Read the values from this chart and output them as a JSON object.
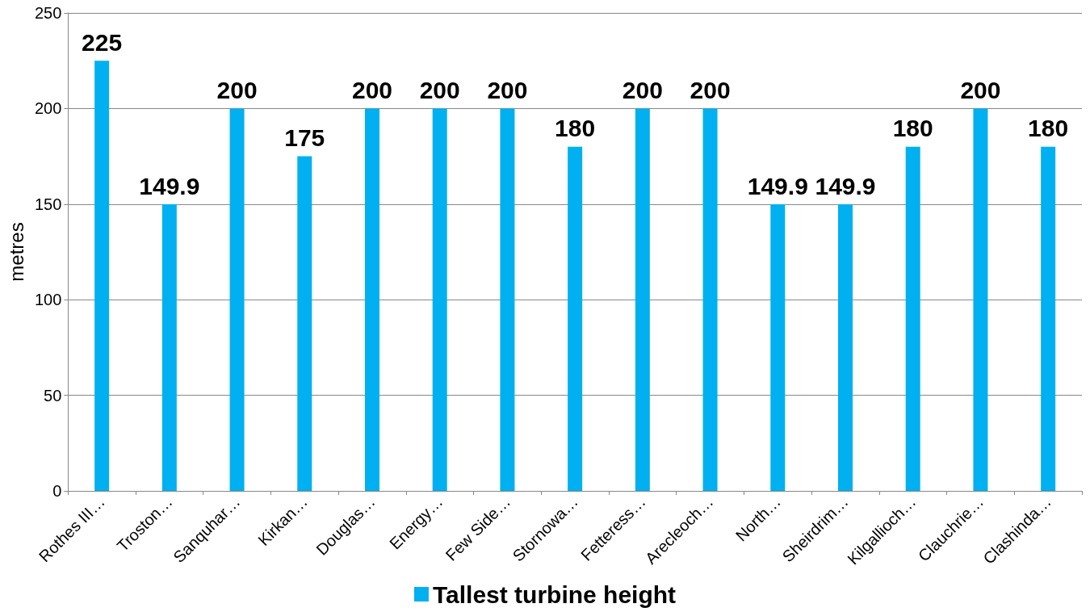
{
  "chart_data": {
    "type": "bar",
    "ylabel": "metres",
    "categories": [
      "Rothes III…",
      "Troston…",
      "Sanquhar…",
      "Kirkan…",
      "Douglas…",
      "Energy…",
      "Few Side…",
      "Stornowa…",
      "Fetteress…",
      "Arecleoch…",
      "North…",
      "Sheirdrim…",
      "Kilgallioch…",
      "Clauchrie…",
      "Clashinda…"
    ],
    "series": [
      {
        "name": "Tallest turbine height",
        "color": "#00b0f0",
        "values": [
          225,
          149.9,
          200,
          175,
          200,
          200,
          200,
          180,
          200,
          200,
          149.9,
          149.9,
          180,
          200,
          180
        ]
      }
    ],
    "ylim": [
      0,
      250
    ],
    "yticks": [
      0,
      50,
      100,
      150,
      200,
      250
    ],
    "grid": "y",
    "legend": "bottom",
    "data_labels": true
  }
}
